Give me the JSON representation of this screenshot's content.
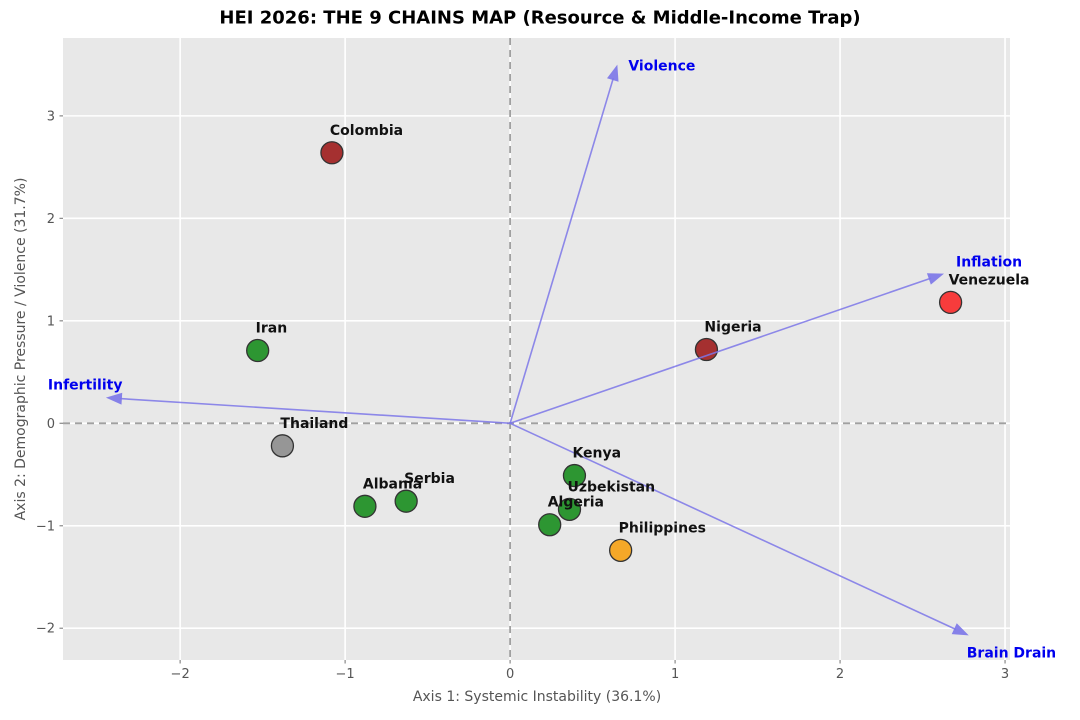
{
  "chart_data": {
    "type": "scatter",
    "title": "HEI 2026: THE 9 CHAINS MAP (Resource & Middle-Income Trap)",
    "xlabel": "Axis 1: Systemic Instability (36.1%)",
    "ylabel": "Axis 2: Demographic Pressure / Violence (31.7%)",
    "xlim": [
      -2.71,
      3.03
    ],
    "ylim": [
      -2.31,
      3.76
    ],
    "xticks": [
      -2,
      -1,
      0,
      1,
      2,
      3
    ],
    "yticks": [
      -2,
      -1,
      0,
      1,
      2,
      3
    ],
    "grid": true,
    "zero_lines": true,
    "legend": "none",
    "points": [
      {
        "name": "Colombia",
        "x": -1.08,
        "y": 2.64,
        "color": "#a53030"
      },
      {
        "name": "Iran",
        "x": -1.53,
        "y": 0.71,
        "color": "#2d9632"
      },
      {
        "name": "Thailand",
        "x": -1.38,
        "y": -0.22,
        "color": "#969696"
      },
      {
        "name": "Albania",
        "x": -0.88,
        "y": -0.81,
        "color": "#2d9632"
      },
      {
        "name": "Serbia",
        "x": -0.63,
        "y": -0.76,
        "color": "#2d9632"
      },
      {
        "name": "Kenya",
        "x": 0.39,
        "y": -0.51,
        "color": "#2d9632"
      },
      {
        "name": "Uzbekistan",
        "x": 0.36,
        "y": -0.84,
        "color": "#2d9632"
      },
      {
        "name": "Algeria",
        "x": 0.24,
        "y": -0.99,
        "color": "#2d9632"
      },
      {
        "name": "Philippines",
        "x": 0.67,
        "y": -1.24,
        "color": "#f5a828"
      },
      {
        "name": "Nigeria",
        "x": 1.19,
        "y": 0.72,
        "color": "#a53030"
      },
      {
        "name": "Venezuela",
        "x": 2.67,
        "y": 1.18,
        "color": "#f73c3c"
      }
    ],
    "vectors": [
      {
        "name": "Violence",
        "x": 0.65,
        "y": 3.5,
        "label_offset": [
          11,
          6
        ],
        "label_anchor": "start"
      },
      {
        "name": "Inflation",
        "x": 2.63,
        "y": 1.46,
        "label_offset": [
          12,
          -7
        ],
        "label_anchor": "start"
      },
      {
        "name": "Infertility",
        "x": -2.45,
        "y": 0.25,
        "label_offset": [
          -58,
          -8
        ],
        "label_anchor": "start"
      },
      {
        "name": "Brain Drain",
        "x": 2.78,
        "y": -2.07,
        "label_offset": [
          -2,
          22
        ],
        "label_anchor": "start"
      }
    ],
    "style": {
      "figure_bg": "#ffffff",
      "plot_bg": "#e8e8e8",
      "grid_color": "#ffffff",
      "zero_line_color": "#a0a0a0",
      "tick_color": "#888888",
      "tick_label_color": "#555555",
      "axis_label_color": "#555555",
      "title_color": "#000000",
      "arrow_color": "#7b76e8",
      "vector_label_color": "#0000ee",
      "point_label_color": "#111111",
      "point_edge_color": "#333333"
    }
  }
}
